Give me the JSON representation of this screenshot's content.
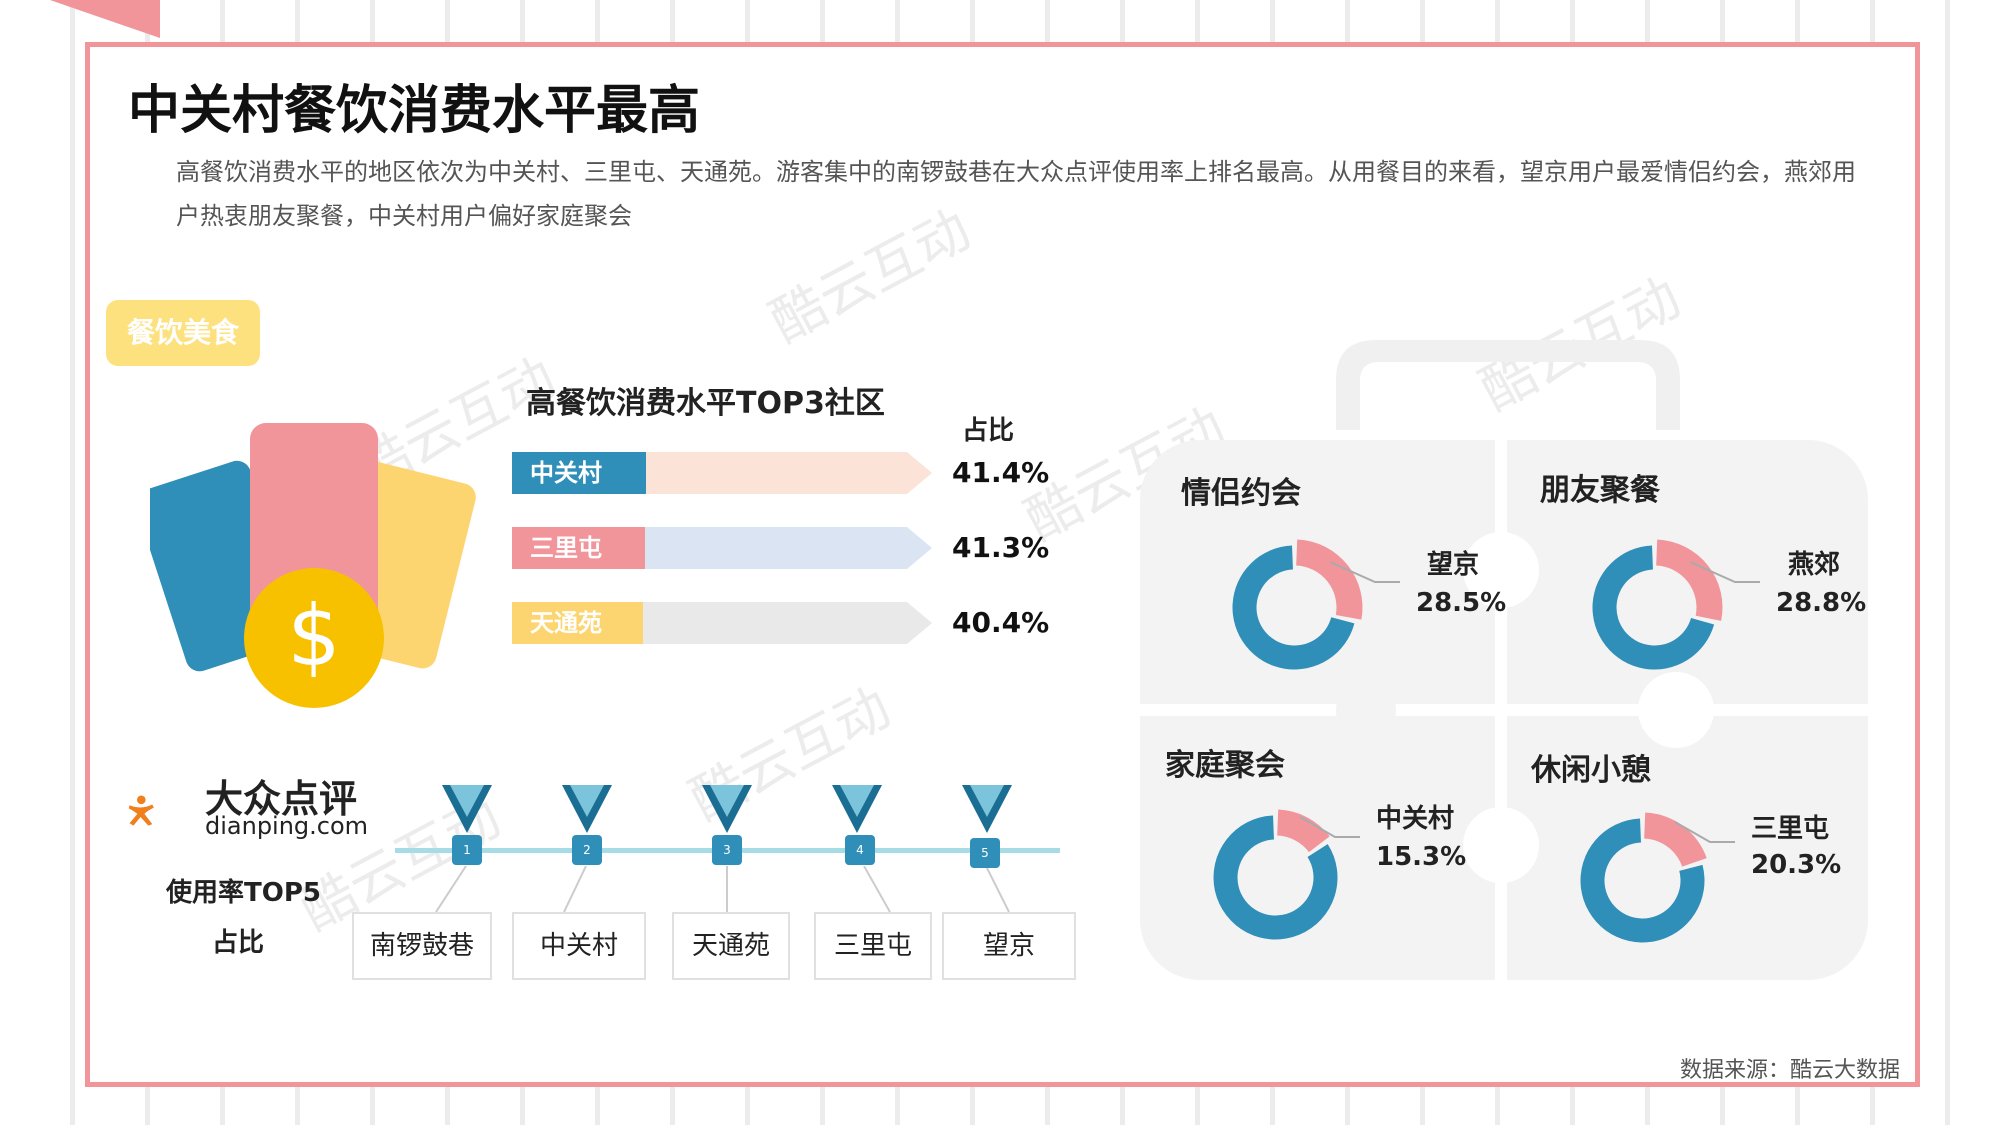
{
  "title": "中关村餐饮消费水平最高",
  "description": "高餐饮消费水平的地区依次为中关村、三里屯、天通苑。游客集中的南锣鼓巷在大众点评使用率上排名最高。从用餐目的来看，望京用户最爱情侣约会，燕郊用户热衷朋友聚餐，中关村用户偏好家庭聚会",
  "watermark_text": "酷云互动",
  "category_tag": "餐饮美食",
  "colors": {
    "blue": "#2f8fb8",
    "pink": "#f2959b",
    "yellow": "#fdd570",
    "frame": "#f2959b",
    "track_pink": "#fbe3d8",
    "track_blue": "#dbe4f2",
    "track_gray": "#e9e9e9",
    "puzzle_bg": "#f3f3f3",
    "teal": "#a7dbe6",
    "coin": "#f7c100",
    "dianping_orange": "#f07f1d"
  },
  "bar_section": {
    "title": "高餐饮消费水平TOP3社区",
    "share_header": "占比"
  },
  "dianping": {
    "logo_cn": "大众点评",
    "logo_en": "dianping.com",
    "top5_title": "使用率TOP5",
    "top5_share": "占比",
    "ranks": [
      "1",
      "2",
      "3",
      "4",
      "5"
    ],
    "items": [
      "南锣鼓巷",
      "中关村",
      "天通苑",
      "三里屯",
      "望京"
    ]
  },
  "chart_data": [
    {
      "type": "bar",
      "title": "高餐饮消费水平TOP3社区",
      "categories": [
        "中关村",
        "三里屯",
        "天通苑"
      ],
      "values": [
        41.4,
        41.3,
        40.4
      ],
      "value_labels": [
        "41.4%",
        "41.3%",
        "40.4%"
      ],
      "colors": [
        "#2f8fb8",
        "#f2959b",
        "#fdd570"
      ]
    },
    {
      "type": "pie",
      "title": "情侣约会",
      "label": "望京",
      "value": 28.5,
      "value_label": "28.5%"
    },
    {
      "type": "pie",
      "title": "朋友聚餐",
      "label": "燕郊",
      "value": 28.8,
      "value_label": "28.8%"
    },
    {
      "type": "pie",
      "title": "家庭聚会",
      "label": "中关村",
      "value": 15.3,
      "value_label": "15.3%"
    },
    {
      "type": "pie",
      "title": "休闲小憩",
      "label": "三里屯",
      "value": 20.3,
      "value_label": "20.3%"
    }
  ],
  "source": "数据来源：酷云大数据"
}
